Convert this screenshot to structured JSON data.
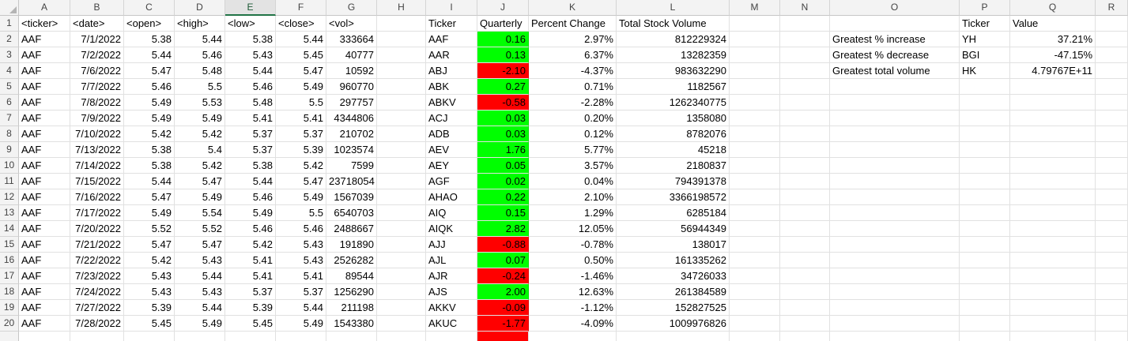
{
  "columns": [
    "A",
    "B",
    "C",
    "D",
    "E",
    "F",
    "G",
    "H",
    "I",
    "J",
    "K",
    "L",
    "M",
    "N",
    "O",
    "P",
    "Q",
    "R"
  ],
  "selected_column": "E",
  "rows": [
    [
      "<ticker>",
      "<date>",
      "<open>",
      "<high>",
      "<low>",
      "<close>",
      "<vol>",
      "",
      "Ticker",
      "Quarterly",
      "Percent Change",
      "Total Stock Volume",
      "",
      "",
      "",
      "Ticker",
      "Value",
      ""
    ],
    [
      "AAF",
      "7/1/2022",
      "5.38",
      "5.44",
      "5.38",
      "5.44",
      "333664",
      "",
      "AAF",
      "0.16",
      "2.97%",
      "812229324",
      "",
      "",
      "Greatest % increase",
      "YH",
      "37.21%",
      ""
    ],
    [
      "AAF",
      "7/2/2022",
      "5.44",
      "5.46",
      "5.43",
      "5.45",
      "40777",
      "",
      "AAR",
      "0.13",
      "6.37%",
      "13282359",
      "",
      "",
      "Greatest % decrease",
      "BGI",
      "-47.15%",
      ""
    ],
    [
      "AAF",
      "7/6/2022",
      "5.47",
      "5.48",
      "5.44",
      "5.47",
      "10592",
      "",
      "ABJ",
      "-2.10",
      "-4.37%",
      "983632290",
      "",
      "",
      "Greatest total volume",
      "HK",
      "4.79767E+11",
      ""
    ],
    [
      "AAF",
      "7/7/2022",
      "5.46",
      "5.5",
      "5.46",
      "5.49",
      "960770",
      "",
      "ABK",
      "0.27",
      "0.71%",
      "1182567",
      "",
      "",
      "",
      "",
      "",
      ""
    ],
    [
      "AAF",
      "7/8/2022",
      "5.49",
      "5.53",
      "5.48",
      "5.5",
      "297757",
      "",
      "ABKV",
      "-0.58",
      "-2.28%",
      "1262340775",
      "",
      "",
      "",
      "",
      "",
      ""
    ],
    [
      "AAF",
      "7/9/2022",
      "5.49",
      "5.49",
      "5.41",
      "5.41",
      "4344806",
      "",
      "ACJ",
      "0.03",
      "0.20%",
      "1358080",
      "",
      "",
      "",
      "",
      "",
      ""
    ],
    [
      "AAF",
      "7/10/2022",
      "5.42",
      "5.42",
      "5.37",
      "5.37",
      "210702",
      "",
      "ADB",
      "0.03",
      "0.12%",
      "8782076",
      "",
      "",
      "",
      "",
      "",
      ""
    ],
    [
      "AAF",
      "7/13/2022",
      "5.38",
      "5.4",
      "5.37",
      "5.39",
      "1023574",
      "",
      "AEV",
      "1.76",
      "5.77%",
      "45218",
      "",
      "",
      "",
      "",
      "",
      ""
    ],
    [
      "AAF",
      "7/14/2022",
      "5.38",
      "5.42",
      "5.38",
      "5.42",
      "7599",
      "",
      "AEY",
      "0.05",
      "3.57%",
      "2180837",
      "",
      "",
      "",
      "",
      "",
      ""
    ],
    [
      "AAF",
      "7/15/2022",
      "5.44",
      "5.47",
      "5.44",
      "5.47",
      "23718054",
      "",
      "AGF",
      "0.02",
      "0.04%",
      "794391378",
      "",
      "",
      "",
      "",
      "",
      ""
    ],
    [
      "AAF",
      "7/16/2022",
      "5.47",
      "5.49",
      "5.46",
      "5.49",
      "1567039",
      "",
      "AHAO",
      "0.22",
      "2.10%",
      "3366198572",
      "",
      "",
      "",
      "",
      "",
      ""
    ],
    [
      "AAF",
      "7/17/2022",
      "5.49",
      "5.54",
      "5.49",
      "5.5",
      "6540703",
      "",
      "AIQ",
      "0.15",
      "1.29%",
      "6285184",
      "",
      "",
      "",
      "",
      "",
      ""
    ],
    [
      "AAF",
      "7/20/2022",
      "5.52",
      "5.52",
      "5.46",
      "5.46",
      "2488667",
      "",
      "AIQK",
      "2.82",
      "12.05%",
      "56944349",
      "",
      "",
      "",
      "",
      "",
      ""
    ],
    [
      "AAF",
      "7/21/2022",
      "5.47",
      "5.47",
      "5.42",
      "5.43",
      "191890",
      "",
      "AJJ",
      "-0.88",
      "-0.78%",
      "138017",
      "",
      "",
      "",
      "",
      "",
      ""
    ],
    [
      "AAF",
      "7/22/2022",
      "5.42",
      "5.43",
      "5.41",
      "5.43",
      "2526282",
      "",
      "AJL",
      "0.07",
      "0.50%",
      "161335262",
      "",
      "",
      "",
      "",
      "",
      ""
    ],
    [
      "AAF",
      "7/23/2022",
      "5.43",
      "5.44",
      "5.41",
      "5.41",
      "89544",
      "",
      "AJR",
      "-0.24",
      "-1.46%",
      "34726033",
      "",
      "",
      "",
      "",
      "",
      ""
    ],
    [
      "AAF",
      "7/24/2022",
      "5.43",
      "5.43",
      "5.37",
      "5.37",
      "1256290",
      "",
      "AJS",
      "2.00",
      "12.63%",
      "261384589",
      "",
      "",
      "",
      "",
      "",
      ""
    ],
    [
      "AAF",
      "7/27/2022",
      "5.39",
      "5.44",
      "5.39",
      "5.44",
      "211198",
      "",
      "AKKV",
      "-0.09",
      "-1.12%",
      "152827525",
      "",
      "",
      "",
      "",
      "",
      ""
    ],
    [
      "AAF",
      "7/28/2022",
      "5.45",
      "5.49",
      "5.45",
      "5.49",
      "1543380",
      "",
      "AKUC",
      "-1.77",
      "-4.09%",
      "1009976826",
      "",
      "",
      "",
      "",
      "",
      ""
    ]
  ],
  "colors": {
    "positive_fill": "#00ff00",
    "negative_fill": "#ff0000",
    "selected_header": "#217346"
  }
}
